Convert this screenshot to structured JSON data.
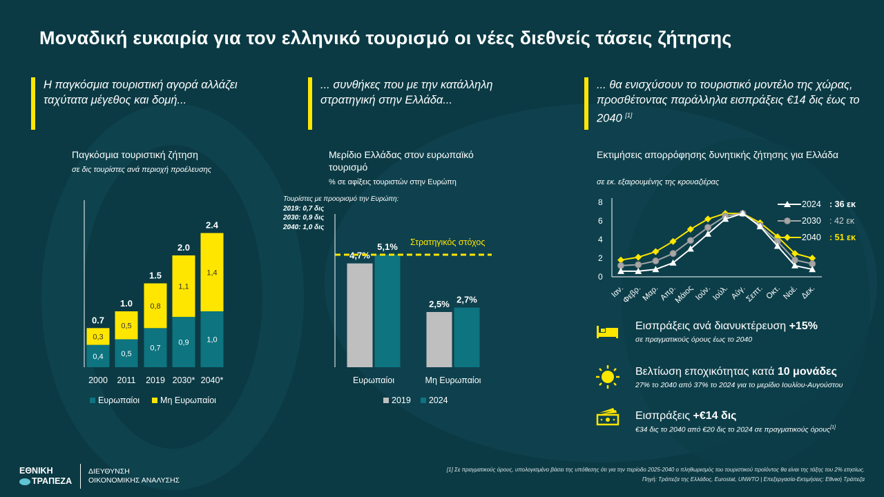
{
  "title": "Μοναδική ευκαιρία για τον ελληνικό τουρισμό οι νέες διεθνείς τάσεις ζήτησης",
  "colors": {
    "bg": "#0b3a44",
    "yellow": "#ffe600",
    "teal": "#0d7480",
    "grey": "#bfbfbf"
  },
  "sections": [
    {
      "text": "Η παγκόσμια τουριστική αγορά αλλάζει ταχύτατα μέγεθος και δομή..."
    },
    {
      "text": "... συνθήκες που με την κατάλληλη στρατηγική στην Ελλάδα..."
    },
    {
      "text": "... θα ενισχύσουν το τουριστικό μοντέλο της χώρας, προσθέτοντας παράλληλα εισπράξεις €14 δις έως το 2040",
      "sup": "[1]"
    }
  ],
  "chart_data": [
    {
      "type": "bar",
      "stacked": true,
      "title": "Παγκόσμια τουριστική ζήτηση",
      "subtitle": "σε δις τουρίστες ανά περιοχή προέλευσης",
      "categories": [
        "2000",
        "2011",
        "2019",
        "2030*",
        "2040*"
      ],
      "series": [
        {
          "name": "Ευρωπαίοι",
          "values": [
            0.4,
            0.5,
            0.7,
            0.9,
            1.0
          ],
          "labels": [
            "0,4",
            "0,5",
            "0,7",
            "0,9",
            "1,0"
          ]
        },
        {
          "name": "Μη Ευρωπαίοι",
          "values": [
            0.3,
            0.5,
            0.8,
            1.1,
            1.4
          ],
          "labels": [
            "0,3",
            "0,5",
            "0,8",
            "1,1",
            "1,4"
          ]
        }
      ],
      "totals": [
        "0.7",
        "1.0",
        "1.5",
        "2.0",
        "2.4"
      ]
    },
    {
      "type": "bar",
      "title": "Μερίδιο Ελλάδας στον ευρωπαϊκό τουρισμό",
      "subtitle": "% σε αφίξεις τουριστών στην Ευρώπη",
      "note_title": "Τουρίστες με προορισμό την Ευρώπη:",
      "notes": [
        "2019: 0,7 δις",
        "2030: 0,9 δις",
        "2040: 1,0 δις"
      ],
      "categories": [
        "Ευρωπαίοι",
        "Μη Ευρωπαίοι"
      ],
      "series": [
        {
          "name": "2019",
          "values": [
            4.7,
            2.5
          ],
          "labels": [
            "4,7%",
            "2,5%"
          ]
        },
        {
          "name": "2024",
          "values": [
            5.1,
            2.7
          ],
          "labels": [
            "5,1%",
            "2,7%"
          ]
        }
      ],
      "target": {
        "label": "Στρατηγικός στόχος",
        "value": 5.0
      }
    },
    {
      "type": "line",
      "title": "Εκτιμήσεις απορρόφησης δυνητικής ζήτησης για Ελλάδα",
      "subtitle": "σε εκ. εξαιρουμένης της κρουαζιέρας",
      "categories": [
        "Ιαν.",
        "Φεβρ.",
        "Μαρ.",
        "Απρ.",
        "Μάιος",
        "Ιούν.",
        "Ιούλ.",
        "Αύγ.",
        "Σεπτ.",
        "Οκτ.",
        "Νοέ.",
        "Δεκ."
      ],
      "yticks": [
        "0",
        "2",
        "4",
        "6",
        "8"
      ],
      "ylim": [
        0,
        8
      ],
      "series": [
        {
          "name": "2024",
          "total": ": 36 εκ",
          "color": "#ffffff",
          "marker": "triangle",
          "values": [
            0.6,
            0.6,
            0.8,
            1.5,
            3.0,
            4.6,
            6.2,
            6.8,
            5.4,
            3.3,
            1.2,
            0.8
          ]
        },
        {
          "name": "2030",
          "total": ": 42 εκ",
          "color": "#a6a6a6",
          "marker": "circle",
          "values": [
            1.2,
            1.3,
            1.7,
            2.5,
            3.9,
            5.3,
            6.5,
            6.8,
            5.5,
            3.8,
            1.8,
            1.4
          ]
        },
        {
          "name": "2040",
          "total": ": 51 εκ",
          "color": "#ffe600",
          "marker": "diamond",
          "values": [
            1.8,
            2.1,
            2.7,
            3.8,
            5.1,
            6.2,
            6.8,
            6.8,
            5.8,
            4.3,
            2.5,
            2.0
          ]
        }
      ]
    }
  ],
  "kpis": [
    {
      "icon": "bed-icon",
      "text": "Εισπράξεις ανά διανυκτέρευση",
      "bold": "+15%",
      "sub": "σε πραγματικούς όρους έως το 2040",
      "sup": ""
    },
    {
      "icon": "sun-icon",
      "text": "Βελτίωση εποχικότητας κατά",
      "bold": "10 μονάδες",
      "sub": "27% το 2040 από 37% το 2024 για το μερίδιο Ιουλίου-Αυγούστου",
      "sup": ""
    },
    {
      "icon": "money-icon",
      "text": "Εισπράξεις",
      "bold": "+€14 δις",
      "sub": "€34 δις το 2040 από €20 δις το 2024 σε πραγματικούς όρους",
      "sup": "[1]"
    }
  ],
  "logo": {
    "line1": "ΕΘΝΙΚΗ",
    "line2": "ΤΡΑΠΕΖΑ"
  },
  "dept": {
    "line1": "ΔΙΕΥΘΥΝΣΗ",
    "line2": "ΟΙΚΟΝΟΜΙΚΗΣ ΑΝΑΛΥΣΗΣ"
  },
  "footnote": "[1] Σε πραγματικούς όρους, υπολογισμένο βάσει της υπόθεσης ότι για την περίοδο 2025-2040 ο πληθωρισμός του τουριστικού προϊόντος θα είναι της τάξης του 2% ετησίως.",
  "source": "Πηγή: Τράπεζα της Ελλάδος, Eurostat, UNWTO | Επεξεργασία-Εκτιμήσεις: Εθνική Τράπεζα"
}
